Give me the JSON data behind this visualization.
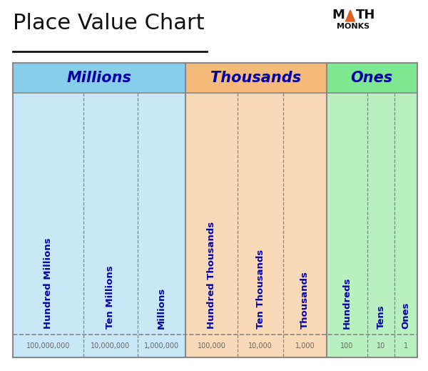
{
  "title": "Place Value Chart",
  "title_fontsize": 22,
  "title_color": "#111111",
  "bg_color": "#ffffff",
  "groups": [
    {
      "name": "Millions",
      "color": "#c8e8f8",
      "header_color": "#87ceeb",
      "columns": [
        "Hundred Millions",
        "Ten Millions",
        "Millions"
      ],
      "values": [
        "100,000,000",
        "10,000,000",
        "1,000,000"
      ]
    },
    {
      "name": "Thousands",
      "color": "#fad9b8",
      "header_color": "#f5b97a",
      "columns": [
        "Hundred Thousands",
        "Ten Thousands",
        "Thousands"
      ],
      "values": [
        "100,000",
        "10,000",
        "1,000"
      ]
    },
    {
      "name": "Ones",
      "color": "#b8f0c0",
      "header_color": "#7de890",
      "columns": [
        "Hundreds",
        "Tens",
        "Ones"
      ],
      "values": [
        "100",
        "10",
        "1"
      ]
    }
  ],
  "text_color": "#0000aa",
  "value_color": "#666666",
  "logo_triangle_color": "#e06020",
  "col_widths": [
    1.55,
    1.2,
    1.05,
    1.15,
    1.0,
    0.95,
    0.9,
    0.6,
    0.5
  ],
  "outer_border_color": "#888888",
  "sep_color": "#888888"
}
